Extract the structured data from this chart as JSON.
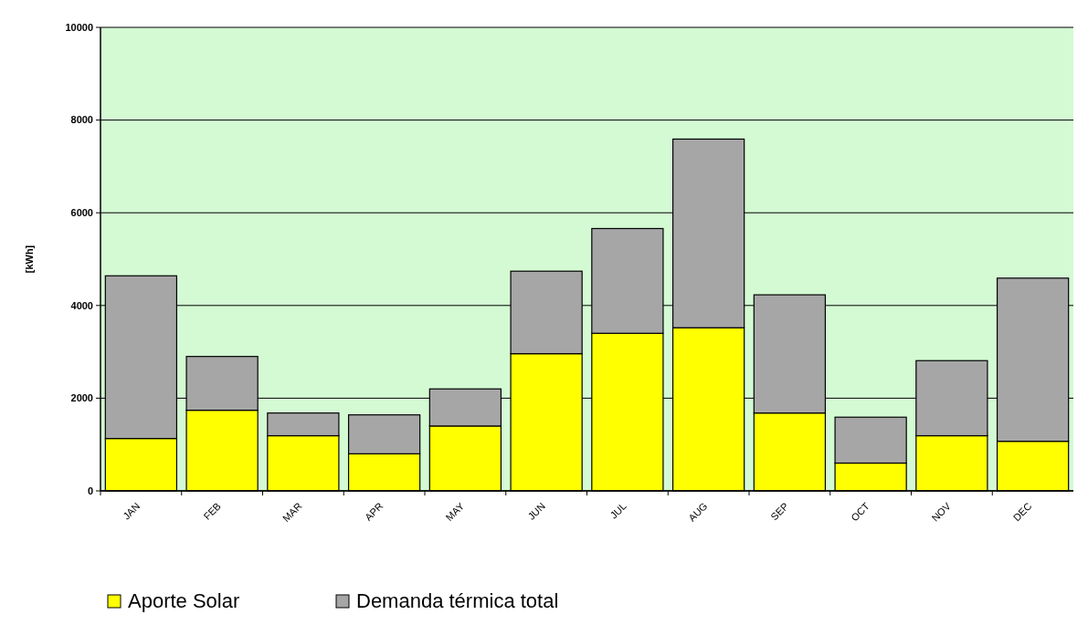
{
  "chart_data": {
    "type": "bar",
    "ylabel": "[kWh]",
    "stacked": true,
    "categories": [
      "JAN",
      "FEB",
      "MAR",
      "APR",
      "MAY",
      "JUN",
      "JUL",
      "AUG",
      "SEP",
      "OCT",
      "NOV",
      "DEC"
    ],
    "series": [
      {
        "name": "Aporte Solar",
        "color": "#ffff00",
        "values": [
          1130,
          1740,
          1190,
          800,
          1400,
          2960,
          3400,
          3520,
          1680,
          600,
          1190,
          1070
        ]
      },
      {
        "name": "Demanda térmica total",
        "color": "#a6a6a6",
        "values": [
          3510,
          1160,
          490,
          840,
          800,
          1780,
          2260,
          4070,
          2550,
          990,
          1620,
          3520
        ]
      }
    ],
    "ylim": [
      0,
      10000
    ],
    "yticks": [
      0,
      2000,
      4000,
      6000,
      8000,
      10000
    ],
    "grid": "y",
    "legend": "bottom left"
  }
}
